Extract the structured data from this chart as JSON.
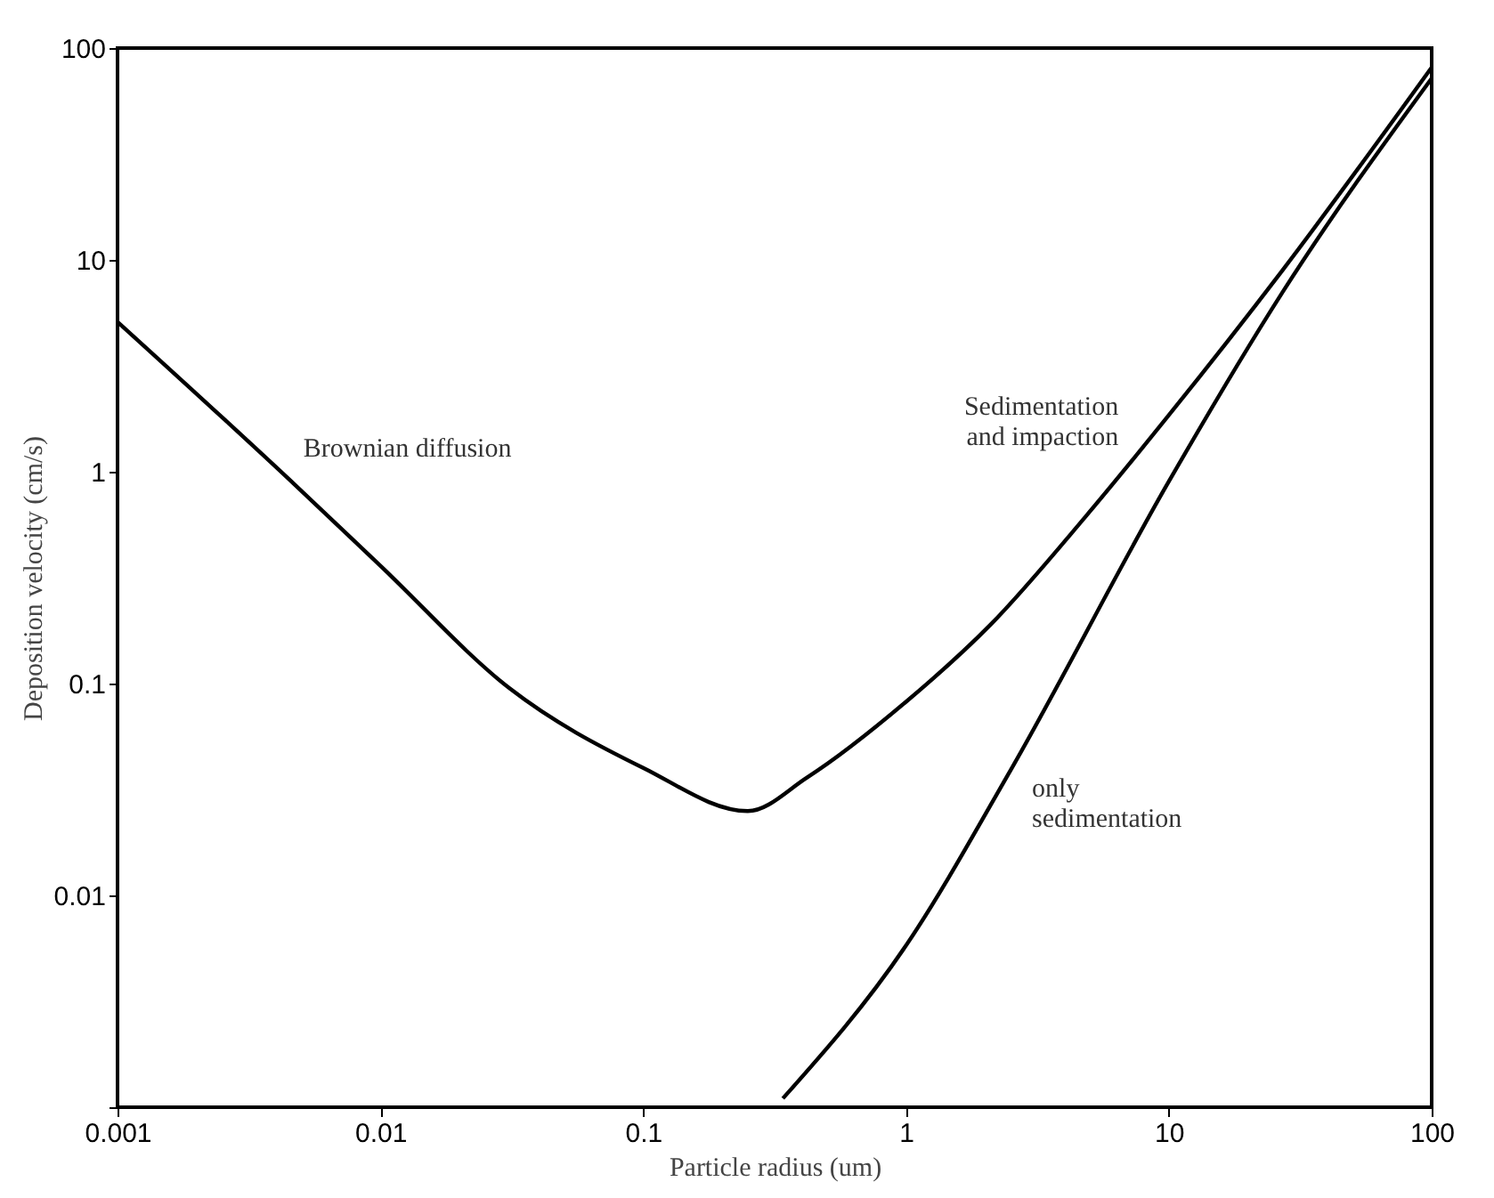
{
  "chart_data": {
    "type": "line",
    "xlabel": "Particle radius (um)",
    "ylabel": "Deposition velocity (cm/s)",
    "log": "xy",
    "grid": false,
    "marker": "none",
    "line_style": "solid",
    "xlim": [
      0.001,
      100
    ],
    "xticks": [
      0.001,
      0.01,
      0.1,
      1,
      10,
      100
    ],
    "ylim": [
      0.001,
      100
    ],
    "yticks": [
      {
        "value": 0.001,
        "label": null
      },
      0.01,
      0.1,
      1,
      10,
      100
    ],
    "series": [
      {
        "color": "#000000",
        "x": [
          0.001,
          0.0045,
          0.01,
          0.031,
          0.1,
          0.25,
          0.42,
          1,
          2.1,
          4.8,
          10,
          27,
          100
        ],
        "values": [
          5.1,
          0.92,
          0.36,
          0.095,
          0.04,
          0.025,
          0.036,
          0.082,
          0.19,
          0.61,
          1.85,
          8.9,
          81
        ]
      },
      {
        "color": "#000000",
        "x": [
          0.34,
          1,
          2.5,
          10,
          27,
          100
        ],
        "values": [
          0.0011,
          0.0058,
          0.039,
          0.9,
          7,
          72
        ]
      }
    ],
    "annotations": [
      {
        "text": "Brownian diffusion",
        "x": 0.0045,
        "y": 0.92
      },
      {
        "text": "Sedimentation\nand impaction",
        "x": 8,
        "y": 1.5
      },
      {
        "text": "only\nsedimentation",
        "x": 2.5,
        "y": 0.04
      }
    ]
  }
}
